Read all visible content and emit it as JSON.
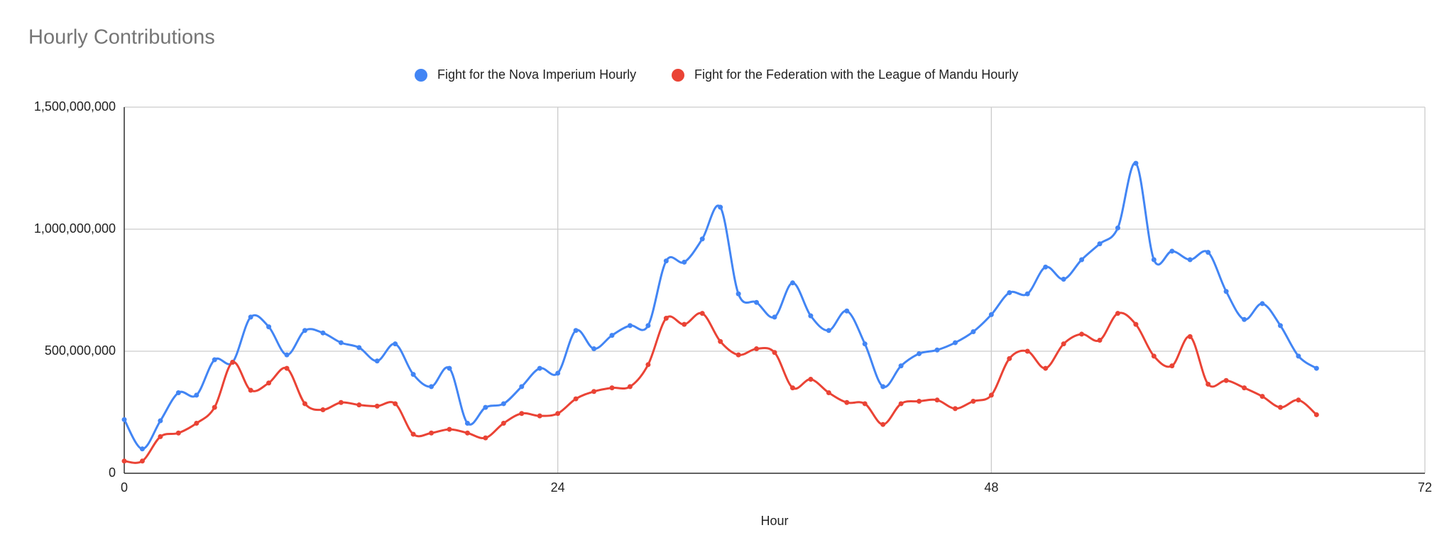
{
  "chart_data": {
    "type": "line",
    "title": "Hourly Contributions",
    "x_label": "Hour",
    "x": [
      0,
      1,
      2,
      3,
      4,
      5,
      6,
      7,
      8,
      9,
      10,
      11,
      12,
      13,
      14,
      15,
      16,
      17,
      18,
      19,
      20,
      21,
      22,
      23,
      24,
      25,
      26,
      27,
      28,
      29,
      30,
      31,
      32,
      33,
      34,
      35,
      36,
      37,
      38,
      39,
      40,
      41,
      42,
      43,
      44,
      45,
      46,
      47,
      48,
      49,
      50,
      51,
      52,
      53,
      54,
      55,
      56,
      57,
      58,
      59,
      60,
      61,
      62,
      63,
      64,
      65,
      66
    ],
    "series": [
      {
        "name": "Fight for the Nova Imperium Hourly",
        "color": "#4285f4",
        "values": [
          220000000,
          100000000,
          215000000,
          330000000,
          320000000,
          465000000,
          455000000,
          640000000,
          600000000,
          485000000,
          585000000,
          575000000,
          535000000,
          515000000,
          460000000,
          530000000,
          405000000,
          355000000,
          430000000,
          205000000,
          270000000,
          285000000,
          355000000,
          430000000,
          410000000,
          585000000,
          510000000,
          565000000,
          605000000,
          605000000,
          870000000,
          865000000,
          960000000,
          1090000000,
          735000000,
          700000000,
          640000000,
          780000000,
          645000000,
          585000000,
          665000000,
          530000000,
          355000000,
          440000000,
          490000000,
          505000000,
          535000000,
          580000000,
          650000000,
          740000000,
          735000000,
          845000000,
          795000000,
          875000000,
          940000000,
          1005000000,
          1270000000,
          875000000,
          910000000,
          875000000,
          905000000,
          745000000,
          630000000,
          695000000,
          605000000,
          480000000,
          430000000
        ]
      },
      {
        "name": "Fight for the Federation with the League of Mandu Hourly",
        "color": "#ea4335",
        "values": [
          50000000,
          50000000,
          150000000,
          165000000,
          205000000,
          270000000,
          455000000,
          340000000,
          370000000,
          430000000,
          285000000,
          260000000,
          290000000,
          280000000,
          275000000,
          285000000,
          160000000,
          165000000,
          180000000,
          165000000,
          145000000,
          205000000,
          245000000,
          235000000,
          245000000,
          305000000,
          335000000,
          350000000,
          355000000,
          445000000,
          635000000,
          610000000,
          655000000,
          540000000,
          485000000,
          510000000,
          495000000,
          350000000,
          385000000,
          330000000,
          290000000,
          285000000,
          200000000,
          285000000,
          295000000,
          300000000,
          265000000,
          295000000,
          320000000,
          470000000,
          500000000,
          430000000,
          530000000,
          570000000,
          545000000,
          655000000,
          610000000,
          480000000,
          440000000,
          560000000,
          365000000,
          380000000,
          350000000,
          315000000,
          270000000,
          300000000,
          240000000
        ]
      }
    ],
    "xlim": [
      0,
      72
    ],
    "xticks": [
      0,
      24,
      48,
      72
    ],
    "ylim": [
      0,
      1500000000
    ],
    "yticks": [
      0,
      {
        "value": 500000000,
        "label": "500,000,000"
      },
      {
        "value": 1000000000,
        "label": "1,000,000,000"
      },
      {
        "value": 1500000000,
        "label": "1,500,000,000"
      }
    ],
    "grid": true,
    "legend": "top"
  }
}
